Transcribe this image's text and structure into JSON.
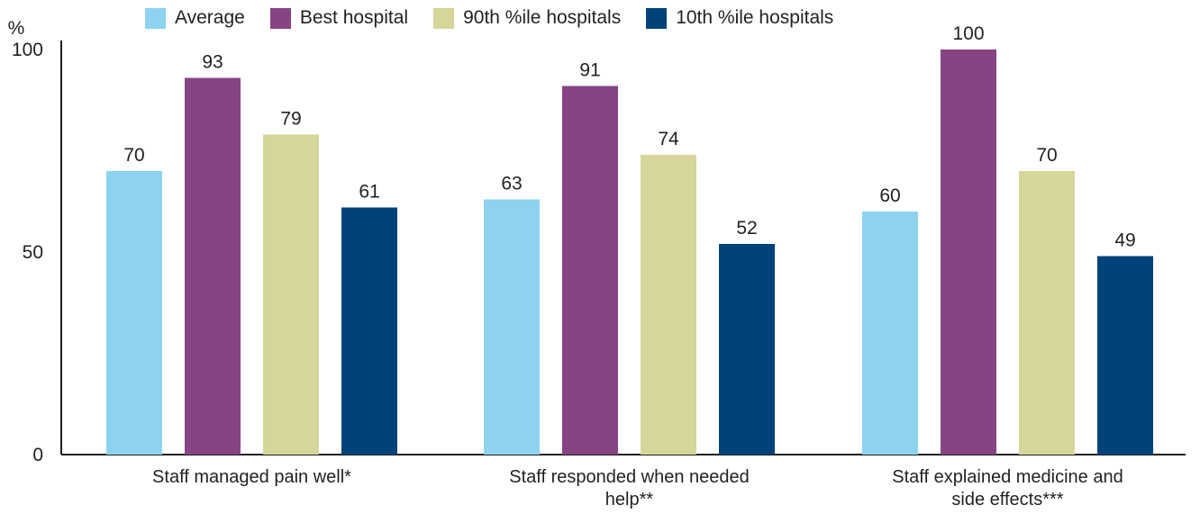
{
  "chart_data": {
    "type": "bar",
    "ylabel": "%",
    "ylim": [
      0,
      100
    ],
    "yticks": [
      0,
      50,
      100
    ],
    "grid": false,
    "legend_placement": "top",
    "categories": [
      "Staff managed pain well*",
      "Staff responded when needed help**",
      "Staff explained medicine and side effects***"
    ],
    "series": [
      {
        "name": "Average",
        "color": "#8dd3f0",
        "values": [
          70,
          63,
          60
        ]
      },
      {
        "name": "Best hospital",
        "color": "#864485",
        "values": [
          93,
          91,
          100
        ]
      },
      {
        "name": "90th %ile hospitals",
        "color": "#d6d59a",
        "values": [
          79,
          74,
          70
        ]
      },
      {
        "name": "10th %ile hospitals",
        "color": "#00437a",
        "values": [
          61,
          52,
          49
        ]
      }
    ]
  }
}
